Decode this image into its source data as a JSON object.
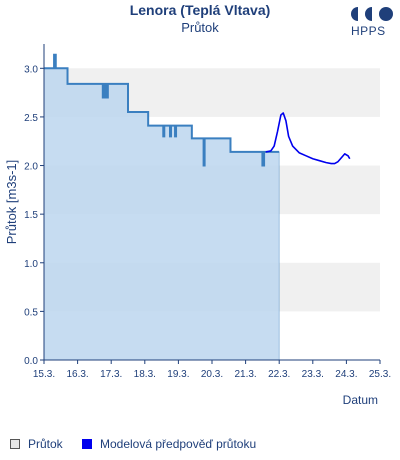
{
  "header": {
    "title": "Lenora (Teplá Vltava)",
    "subtitle": "Průtok",
    "logo_text": "HPPS"
  },
  "legend": {
    "items": [
      {
        "label": "Průtok",
        "color": "#e6e6e6"
      },
      {
        "label": "Modelová předpověď průtoku",
        "color": "#0000ee"
      }
    ]
  },
  "colors": {
    "observed_line": "#3a7fc0",
    "observed_fill": "#bcd6ef",
    "forecast_line": "#0000ee",
    "band": "#f0f0f0",
    "axis": "#1f3f7a"
  },
  "chart_data": {
    "type": "line",
    "xlabel": "Datum",
    "ylabel": "Průtok [m3s-1]",
    "ylim": [
      0.0,
      3.25
    ],
    "xlim": [
      15.0,
      25.0
    ],
    "x_ticks": [
      "15.3.",
      "16.3.",
      "17.3.",
      "18.3.",
      "19.3.",
      "20.3.",
      "21.3.",
      "22.3.",
      "23.3.",
      "24.3.",
      "25.3."
    ],
    "y_ticks": [
      "0.0",
      "0.5",
      "1.0",
      "1.5",
      "2.0",
      "2.5",
      "3.0"
    ],
    "y_tick_values": [
      0.0,
      0.5,
      1.0,
      1.5,
      2.0,
      2.5,
      3.0
    ],
    "grid": "horizontal bands",
    "series": [
      {
        "name": "Průtok",
        "style": "area",
        "x": [
          15.0,
          15.3,
          15.3,
          15.35,
          15.35,
          15.7,
          15.7,
          16.75,
          16.75,
          16.8,
          16.8,
          16.85,
          16.85,
          16.9,
          16.9,
          17.5,
          17.5,
          18.1,
          18.1,
          18.55,
          18.55,
          18.58,
          18.58,
          18.75,
          18.75,
          18.78,
          18.78,
          18.9,
          18.9,
          18.93,
          18.93,
          19.4,
          19.4,
          19.45,
          19.45,
          19.75,
          19.75,
          19.78,
          19.78,
          20.55,
          20.55,
          21.5,
          21.5,
          21.55,
          21.55,
          22.0
        ],
        "y": [
          3.0,
          3.0,
          3.14,
          3.14,
          3.0,
          3.0,
          2.84,
          2.84,
          2.7,
          2.7,
          2.84,
          2.84,
          2.7,
          2.7,
          2.84,
          2.84,
          2.55,
          2.55,
          2.41,
          2.41,
          2.3,
          2.3,
          2.41,
          2.41,
          2.3,
          2.3,
          2.41,
          2.41,
          2.3,
          2.3,
          2.41,
          2.41,
          2.28,
          2.28,
          2.28,
          2.28,
          2.0,
          2.0,
          2.28,
          2.28,
          2.14,
          2.14,
          2.0,
          2.0,
          2.14,
          2.14
        ]
      },
      {
        "name": "Modelová předpověď průtoku",
        "style": "line",
        "x": [
          21.6,
          21.75,
          21.85,
          21.95,
          22.05,
          22.12,
          22.2,
          22.28,
          22.4,
          22.6,
          22.8,
          23.0,
          23.2,
          23.4,
          23.55,
          23.65,
          23.75,
          23.85,
          23.95,
          24.05,
          24.1
        ],
        "y": [
          2.14,
          2.15,
          2.2,
          2.35,
          2.52,
          2.54,
          2.46,
          2.3,
          2.2,
          2.13,
          2.1,
          2.07,
          2.05,
          2.03,
          2.02,
          2.02,
          2.04,
          2.08,
          2.12,
          2.1,
          2.07
        ]
      }
    ]
  }
}
